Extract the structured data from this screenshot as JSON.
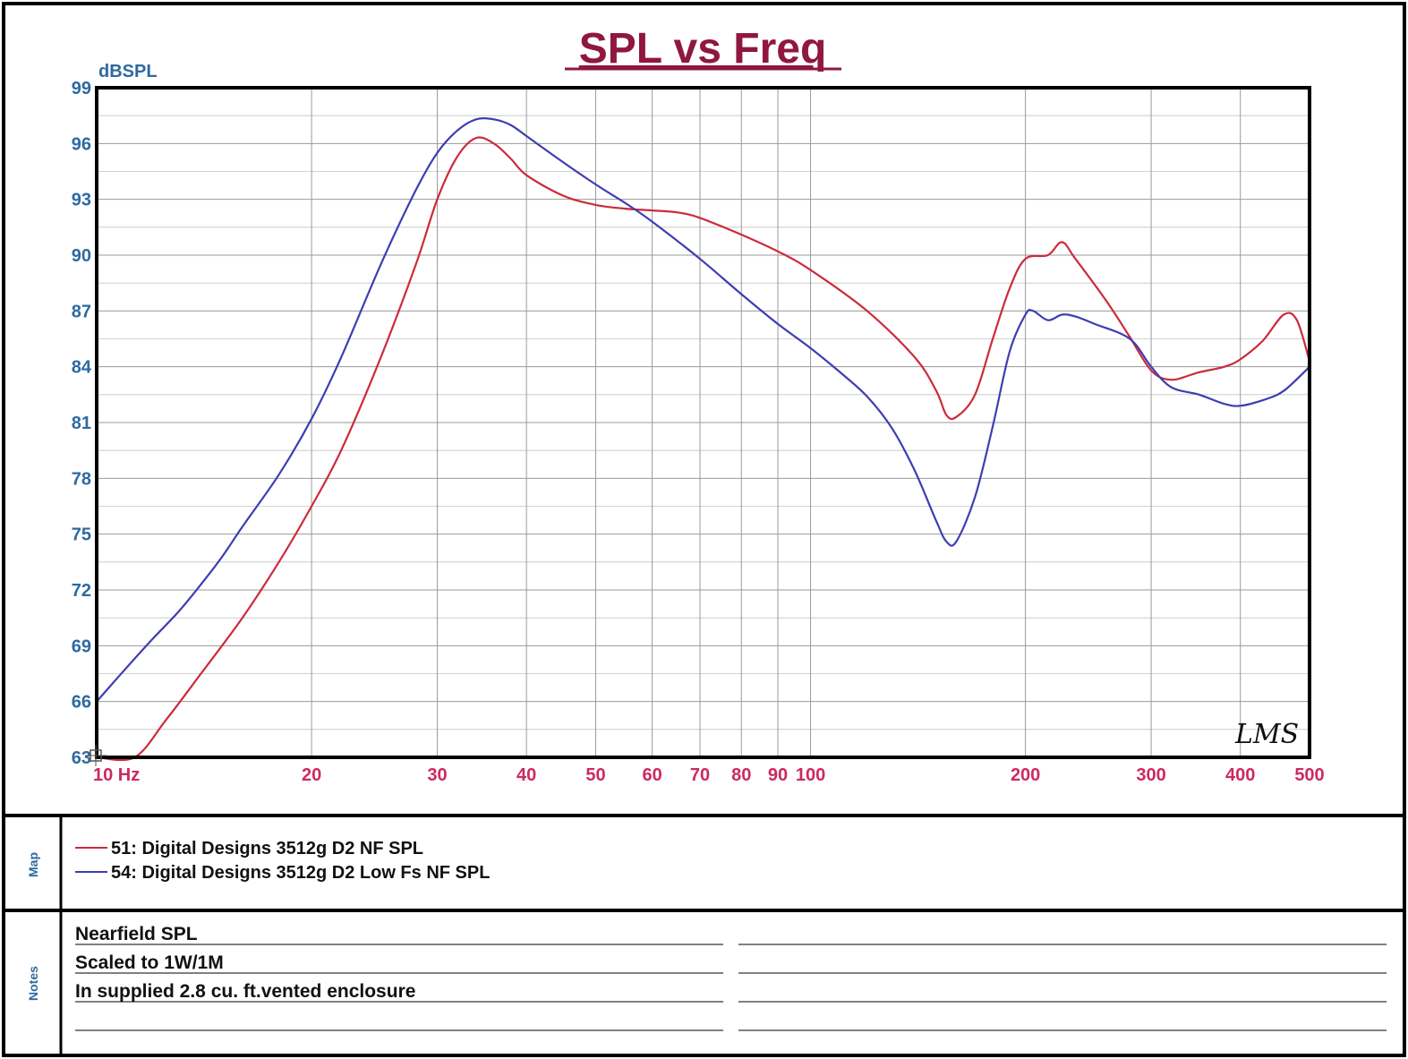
{
  "chart_data": {
    "type": "line",
    "title": "SPL vs Freq",
    "ylabel": "dBSPL",
    "xlabel": "",
    "x_scale": "log",
    "xlim": [
      10,
      500
    ],
    "ylim": [
      63,
      99
    ],
    "grid": true,
    "y_ticks": [
      {
        "value": 63,
        "label": "63"
      },
      {
        "value": 66,
        "label": "66"
      },
      {
        "value": 69,
        "label": "69"
      },
      {
        "value": 72,
        "label": "72"
      },
      {
        "value": 75,
        "label": "75"
      },
      {
        "value": 78,
        "label": "78"
      },
      {
        "value": 81,
        "label": "81"
      },
      {
        "value": 84,
        "label": "84"
      },
      {
        "value": 87,
        "label": "87"
      },
      {
        "value": 90,
        "label": "90"
      },
      {
        "value": 93,
        "label": "93"
      },
      {
        "value": 96,
        "label": "96"
      },
      {
        "value": 99,
        "label": "99"
      }
    ],
    "x_ticks": [
      {
        "value": 10,
        "label": "10 Hz"
      },
      {
        "value": 20,
        "label": "20"
      },
      {
        "value": 30,
        "label": "30"
      },
      {
        "value": 40,
        "label": "40"
      },
      {
        "value": 50,
        "label": "50"
      },
      {
        "value": 60,
        "label": "60"
      },
      {
        "value": 70,
        "label": "70"
      },
      {
        "value": 80,
        "label": "80"
      },
      {
        "value": 90,
        "label": "90"
      },
      {
        "value": 100,
        "label": "100"
      },
      {
        "value": 200,
        "label": "200"
      },
      {
        "value": 300,
        "label": "300"
      },
      {
        "value": 400,
        "label": "400"
      },
      {
        "value": 500,
        "label": "500"
      }
    ],
    "x_gridlines": [
      10,
      20,
      30,
      40,
      50,
      60,
      70,
      80,
      90,
      100,
      200,
      300,
      400,
      500
    ],
    "series": [
      {
        "name": "51: Digital Designs 3512g D2 NF SPL",
        "color": "#cc2b3b",
        "x": [
          10,
          11.3,
          12.5,
          14,
          16,
          18,
          20,
          22,
          25,
          28,
          30,
          32,
          34,
          36,
          38,
          40,
          45,
          50,
          55,
          60,
          65,
          70,
          80,
          90,
          100,
          120,
          140,
          150,
          155,
          160,
          170,
          180,
          190,
          200,
          215,
          225,
          235,
          260,
          280,
          300,
          320,
          350,
          380,
          400,
          430,
          460,
          480,
          500
        ],
        "y": [
          63,
          63,
          65,
          67.5,
          70.5,
          73.5,
          76.5,
          79.5,
          84.5,
          89.5,
          93,
          95.3,
          96.3,
          96,
          95.2,
          94.3,
          93.2,
          92.7,
          92.5,
          92.4,
          92.3,
          92,
          91.1,
          90.2,
          89.2,
          87,
          84.5,
          82.7,
          81.4,
          81.3,
          82.5,
          85.5,
          88.2,
          89.8,
          90,
          90.7,
          89.8,
          87.5,
          85.6,
          83.8,
          83.3,
          83.7,
          84,
          84.4,
          85.4,
          86.8,
          86.5,
          84.3
        ]
      },
      {
        "name": "54: Digital Designs 3512g D2 Low Fs NF SPL",
        "color": "#3d3eb0",
        "x": [
          10,
          11,
          12,
          13,
          14,
          15,
          16,
          18,
          20,
          22,
          25,
          28,
          30,
          32,
          34,
          36,
          38,
          40,
          45,
          50,
          55,
          60,
          70,
          80,
          90,
          100,
          110,
          120,
          130,
          140,
          150,
          155,
          160,
          170,
          180,
          190,
          200,
          205,
          215,
          225,
          235,
          250,
          280,
          300,
          320,
          350,
          380,
          400,
          430,
          460,
          500
        ],
        "y": [
          66,
          67.8,
          69.4,
          70.8,
          72.3,
          73.8,
          75.4,
          78.2,
          81.2,
          84.5,
          89.5,
          93.5,
          95.5,
          96.7,
          97.3,
          97.3,
          97,
          96.4,
          95,
          93.8,
          92.8,
          91.8,
          89.8,
          87.9,
          86.3,
          85,
          83.7,
          82.4,
          80.7,
          78.4,
          75.7,
          74.6,
          74.6,
          77,
          80.8,
          84.8,
          86.8,
          87,
          86.5,
          86.8,
          86.7,
          86.3,
          85.5,
          84,
          82.9,
          82.5,
          82,
          81.9,
          82.2,
          82.7,
          84
        ]
      }
    ]
  },
  "map_panel": {
    "label": "Map",
    "entries": [
      {
        "text": "51: Digital Designs 3512g D2 NF SPL",
        "color": "#cc2b3b"
      },
      {
        "text": "54: Digital Designs 3512g D2 Low Fs NF SPL",
        "color": "#3d3eb0"
      }
    ]
  },
  "notes_panel": {
    "label": "Notes",
    "lines": [
      "Nearfield SPL",
      "Scaled to 1W/1M",
      "In supplied 2.8 cu. ft.vented enclosure",
      ""
    ]
  },
  "watermark": "LMS",
  "colors": {
    "title": "#8f1740",
    "y_tick": "#2e6aa0",
    "x_tick": "#cc2a5e",
    "grid": "#9a9a9a",
    "panel_label": "#2e6aa0"
  }
}
